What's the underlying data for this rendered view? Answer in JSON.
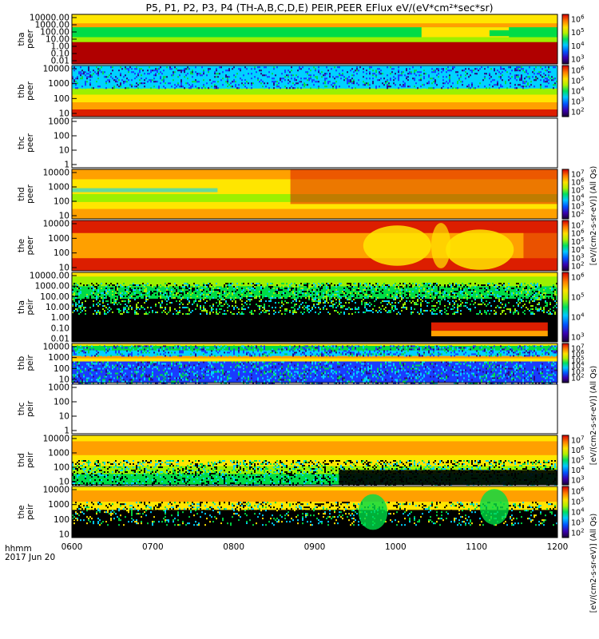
{
  "title": "P5, P1, P2, P3, P4 (TH-A,B,C,D,E) PEIR,PEER EFlux eV/(eV*cm²*sec*sr)",
  "time_axis": {
    "label_line1": "hhmm",
    "label_line2": "2017 Jun 20",
    "ticks": [
      "0600",
      "0700",
      "0800",
      "0900",
      "1000",
      "1100",
      "1200"
    ]
  },
  "colorbar_labels": [
    "[eV/(cm2-s-sr-eV)] (All Qs)",
    "[eV/(cm2-s-sr-eV)] (All Qs)",
    "[eV/(cm2-s-sr-eV)] (All Qs)"
  ],
  "chart_data": [
    {
      "type": "heatmap",
      "probe": "tha",
      "species": "peer",
      "line1": "tha",
      "line2": "peer",
      "yticks": [
        "10000.00",
        "1000.00",
        "100.00",
        "10.00",
        "1.00",
        "0.10",
        "0.01"
      ],
      "scale": "log",
      "palette": "peer_high",
      "colorbar": {
        "ticks": [
          "10^6",
          "10^5",
          "10^4",
          "10^3"
        ]
      }
    },
    {
      "type": "heatmap",
      "probe": "thb",
      "species": "peer",
      "line1": "thb",
      "line2": "peer",
      "yticks": [
        "10000",
        "1000",
        "100",
        "10"
      ],
      "scale": "log",
      "palette": "peer_noisy",
      "colorbar": {
        "ticks": [
          "10^6",
          "10^5",
          "10^4",
          "10^3",
          "10^2"
        ]
      }
    },
    {
      "type": "heatmap",
      "probe": "thc",
      "species": "peer",
      "line1": "thc",
      "line2": "peer",
      "yticks": [
        "1000",
        "100",
        "10",
        "1"
      ],
      "scale": "log",
      "palette": "empty",
      "colorbar": null
    },
    {
      "type": "heatmap",
      "probe": "thd",
      "species": "peer",
      "line1": "thd",
      "line2": "peer",
      "yticks": [
        "10000",
        "1000",
        "100",
        "10"
      ],
      "scale": "log",
      "palette": "peer_smooth",
      "colorbar": {
        "ticks": [
          "10^7",
          "10^6",
          "10^5",
          "10^4",
          "10^3",
          "10^2"
        ]
      }
    },
    {
      "type": "heatmap",
      "probe": "the",
      "species": "peer",
      "line1": "the",
      "line2": "peer",
      "yticks": [
        "10000",
        "1000",
        "100",
        "10"
      ],
      "scale": "log",
      "palette": "peer_blobs",
      "colorbar": {
        "ticks": [
          "10^7",
          "10^6",
          "10^5",
          "10^4",
          "10^3",
          "10^2"
        ]
      }
    },
    {
      "type": "heatmap",
      "probe": "tha",
      "species": "peir",
      "line1": "tha",
      "line2": "peir",
      "yticks": [
        "10000.00",
        "1000.00",
        "100.00",
        "10.00",
        "1.00",
        "0.10",
        "0.01"
      ],
      "scale": "log",
      "palette": "peir_decay",
      "colorbar": {
        "ticks": [
          "10^6",
          "10^5",
          "10^4",
          "10^3"
        ]
      }
    },
    {
      "type": "heatmap",
      "probe": "thb",
      "species": "peir",
      "line1": "thb",
      "line2": "peir",
      "yticks": [
        "10000",
        "1000",
        "100",
        "10"
      ],
      "scale": "log",
      "palette": "peir_noisy",
      "colorbar": {
        "ticks": [
          "10^7",
          "10^6",
          "10^5",
          "10^4",
          "10^3",
          "10^2"
        ]
      }
    },
    {
      "type": "heatmap",
      "probe": "thc",
      "species": "peir",
      "line1": "thc",
      "line2": "peir",
      "yticks": [
        "1000",
        "100",
        "10",
        "1"
      ],
      "scale": "log",
      "palette": "empty",
      "colorbar": null
    },
    {
      "type": "heatmap",
      "probe": "thd",
      "species": "peir",
      "line1": "thd",
      "line2": "peir",
      "yticks": [
        "10000",
        "1000",
        "100",
        "10"
      ],
      "scale": "log",
      "palette": "peir_grad",
      "colorbar": {
        "ticks": [
          "10^7",
          "10^6",
          "10^5",
          "10^4",
          "10^3"
        ]
      }
    },
    {
      "type": "heatmap",
      "probe": "the",
      "species": "peir",
      "line1": "the",
      "line2": "peir",
      "yticks": [
        "10000",
        "1000",
        "100",
        "10"
      ],
      "scale": "log",
      "palette": "peir_sparse",
      "colorbar": {
        "ticks": [
          "10^6",
          "10^5",
          "10^4",
          "10^3",
          "10^2"
        ]
      }
    }
  ]
}
